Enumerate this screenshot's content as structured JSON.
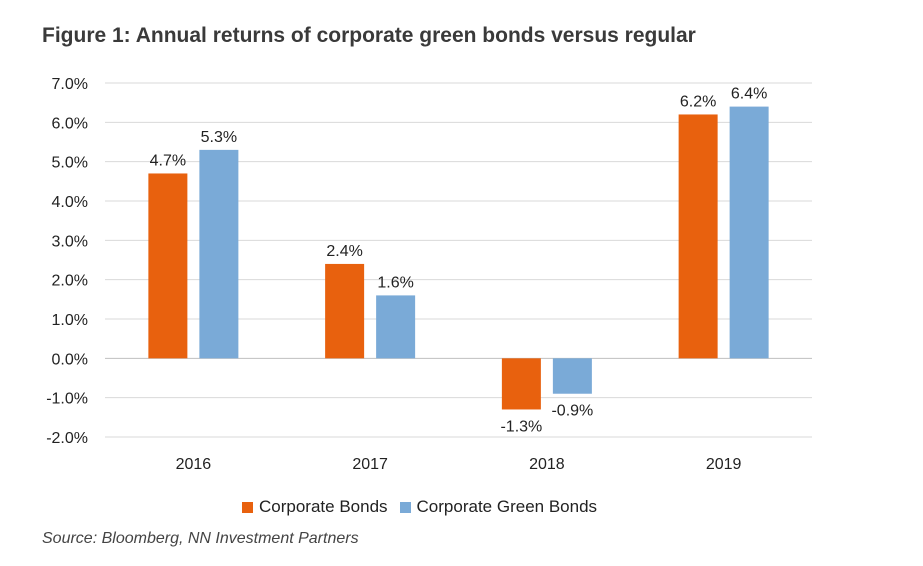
{
  "title": "Figure 1: Annual returns of corporate green bonds versus regular",
  "source": "Source: Bloomberg, NN Investment Partners",
  "colors": {
    "corporate": "#e8610e",
    "green": "#7aaad7",
    "grid": "#d9d9d9",
    "axis": "#bfbfbf"
  },
  "legend": [
    {
      "label": "Corporate Bonds",
      "color": "#e8610e"
    },
    {
      "label": "Corporate Green Bonds",
      "color": "#7aaad7"
    }
  ],
  "chart_data": {
    "type": "bar",
    "title": "Figure 1: Annual returns of corporate green bonds versus regular",
    "categories": [
      "2016",
      "2017",
      "2018",
      "2019"
    ],
    "series": [
      {
        "name": "Corporate Bonds",
        "values": [
          4.7,
          2.4,
          -1.3,
          6.2
        ],
        "labels": [
          "4.7%",
          "2.4%",
          "-1.3%",
          "6.2%"
        ]
      },
      {
        "name": "Corporate Green Bonds",
        "values": [
          5.3,
          1.6,
          -0.9,
          6.4
        ],
        "labels": [
          "5.3%",
          "1.6%",
          "-0.9%",
          "6.4%"
        ]
      }
    ],
    "ylim": [
      -2.0,
      7.0
    ],
    "yticks": [
      7.0,
      6.0,
      5.0,
      4.0,
      3.0,
      2.0,
      1.0,
      0.0,
      -1.0,
      -2.0
    ],
    "ytick_labels": [
      "7.0%",
      "6.0%",
      "5.0%",
      "4.0%",
      "3.0%",
      "2.0%",
      "1.0%",
      "0.0%",
      "-1.0%",
      "-2.0%"
    ],
    "xlabel": "",
    "ylabel": "",
    "grid": true,
    "legend_position": "bottom"
  }
}
